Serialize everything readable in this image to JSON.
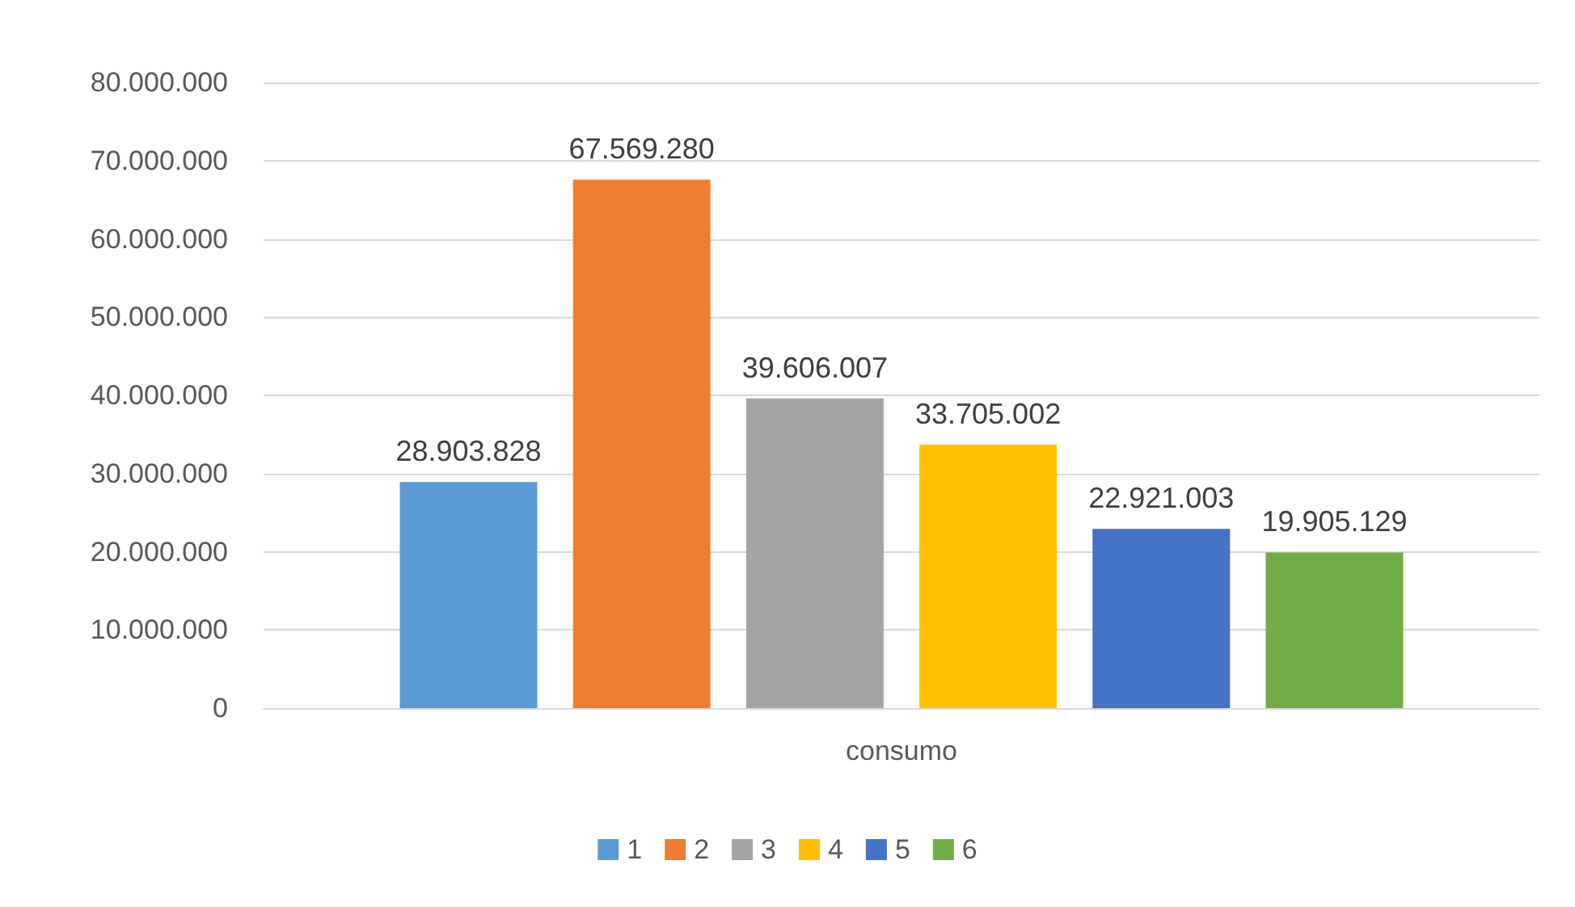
{
  "chart_data": {
    "type": "bar",
    "categories": [
      "consumo"
    ],
    "series": [
      {
        "name": "1",
        "color": "#5b9bd5",
        "values": [
          28903828
        ],
        "value_labels": [
          "28.903.828"
        ]
      },
      {
        "name": "2",
        "color": "#ed7d31",
        "values": [
          67569280
        ],
        "value_labels": [
          "67.569.280"
        ]
      },
      {
        "name": "3",
        "color": "#a5a5a5",
        "values": [
          39606007
        ],
        "value_labels": [
          "39.606.007"
        ]
      },
      {
        "name": "4",
        "color": "#ffc000",
        "values": [
          33705002
        ],
        "value_labels": [
          "33.705.002"
        ]
      },
      {
        "name": "5",
        "color": "#4472c4",
        "values": [
          22921003
        ],
        "value_labels": [
          "22.921.003"
        ]
      },
      {
        "name": "6",
        "color": "#70ad47",
        "values": [
          19905129
        ],
        "value_labels": [
          "19.905.129"
        ]
      }
    ],
    "ylim": [
      0,
      80000000
    ],
    "yticks": [
      0,
      {
        "value": 10000000,
        "label": "10.000.000"
      },
      {
        "value": 20000000,
        "label": "20.000.000"
      },
      {
        "value": 30000000,
        "label": "30.000.000"
      },
      {
        "value": 40000000,
        "label": "40.000.000"
      },
      {
        "value": 50000000,
        "label": "50.000.000"
      },
      {
        "value": 60000000,
        "label": "60.000.000"
      },
      {
        "value": 70000000,
        "label": "70.000.000"
      },
      {
        "value": 80000000,
        "label": "80.000.000"
      }
    ],
    "grid": "y",
    "legend": "bottom"
  }
}
